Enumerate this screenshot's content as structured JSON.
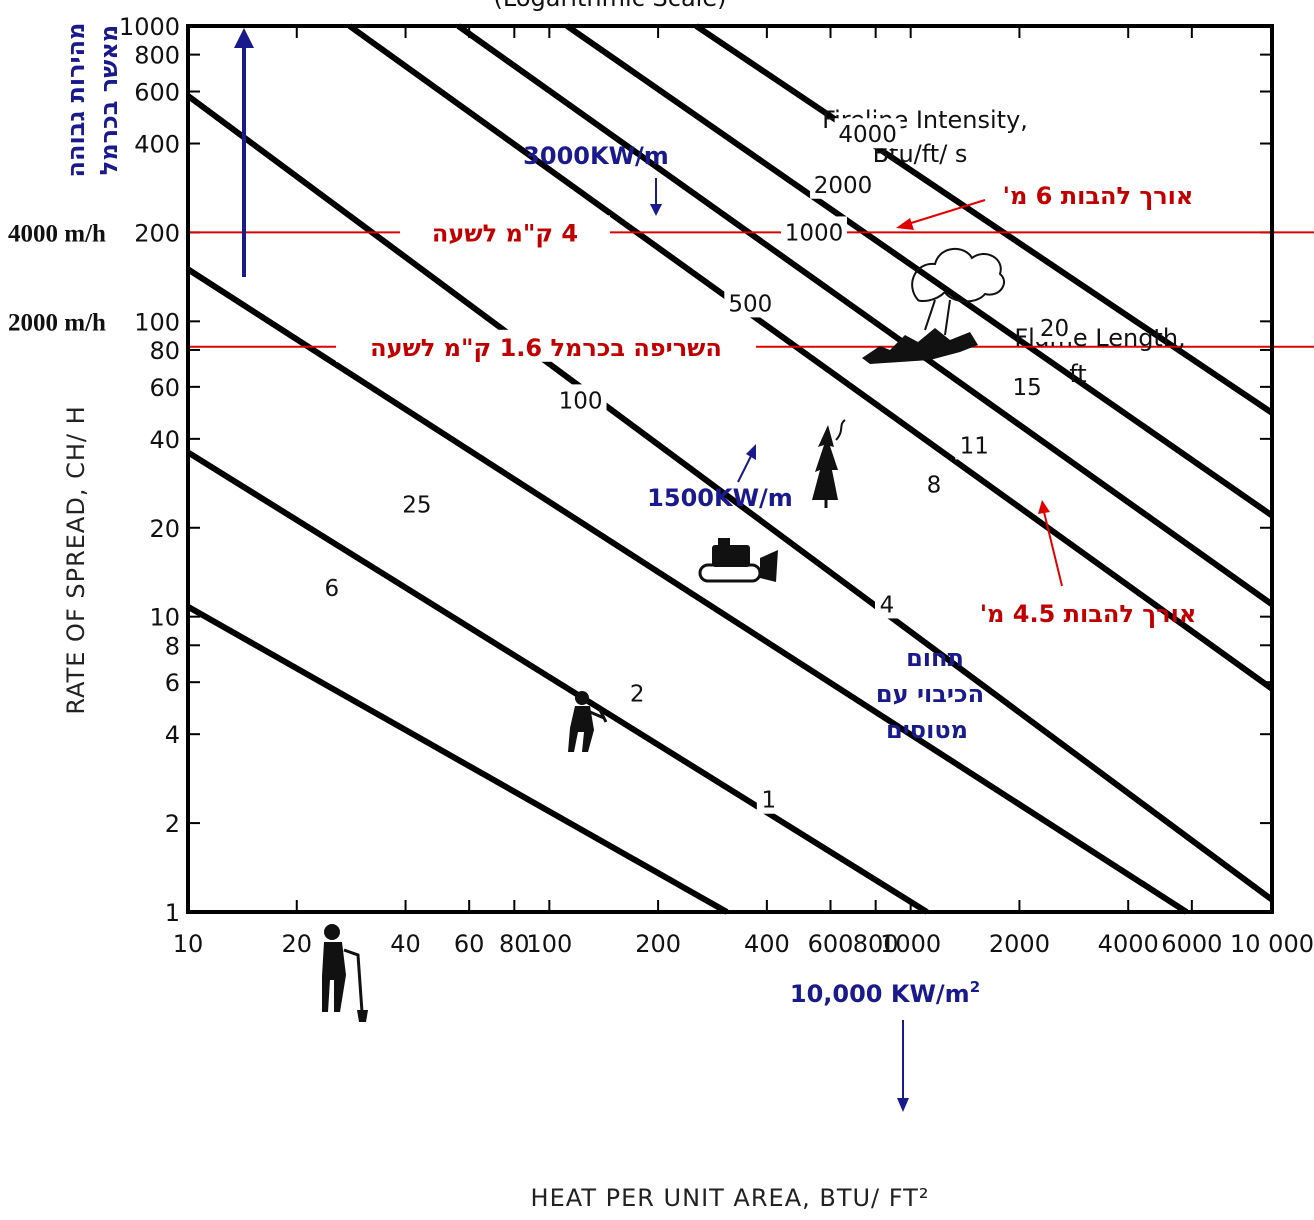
{
  "chart_data": {
    "type": "line",
    "title": "(Logarithmic Scale)",
    "xlabel": "HEAT PER UNIT AREA, BTU/ FT²",
    "ylabel": "RATE OF SPREAD, CH/ H",
    "x_scale": "log",
    "y_scale": "log",
    "xlim": [
      10,
      10000
    ],
    "ylim": [
      1,
      1000
    ],
    "x_ticks": [
      {
        "value": 10,
        "label": "10"
      },
      {
        "value": 20,
        "label": "20"
      },
      {
        "value": 40,
        "label": "40"
      },
      {
        "value": 60,
        "label": "60"
      },
      {
        "value": 80,
        "label": "80"
      },
      {
        "value": 100,
        "label": "100"
      },
      {
        "value": 200,
        "label": "200"
      },
      {
        "value": 400,
        "label": "400"
      },
      {
        "value": 600,
        "label": "600"
      },
      {
        "value": 800,
        "label": "800"
      },
      {
        "value": 1000,
        "label": "1000"
      },
      {
        "value": 2000,
        "label": "2000"
      },
      {
        "value": 4000,
        "label": "4000"
      },
      {
        "value": 6000,
        "label": "6000"
      },
      {
        "value": 10000,
        "label": "10 000"
      }
    ],
    "y_ticks": [
      {
        "value": 1,
        "label": "1"
      },
      {
        "value": 2,
        "label": "2"
      },
      {
        "value": 4,
        "label": "4"
      },
      {
        "value": 6,
        "label": "6"
      },
      {
        "value": 8,
        "label": "8"
      },
      {
        "value": 10,
        "label": "10"
      },
      {
        "value": 20,
        "label": "20"
      },
      {
        "value": 40,
        "label": "40"
      },
      {
        "value": 60,
        "label": "60"
      },
      {
        "value": 80,
        "label": "80"
      },
      {
        "value": 100,
        "label": "100"
      },
      {
        "value": 200,
        "label": "200"
      },
      {
        "value": 400,
        "label": "400"
      },
      {
        "value": 600,
        "label": "600"
      },
      {
        "value": 800,
        "label": "800"
      },
      {
        "value": 1000,
        "label": "1000"
      }
    ],
    "fireline_intensity_title": "Fireline Intensity,",
    "fireline_intensity_units": "Btu/ft/ s",
    "flame_length_title": "Flame Length,",
    "flame_length_units": "ft",
    "contours": [
      {
        "intensity_btu_ft_s": 1,
        "x": [
          10,
          310
        ],
        "y": [
          10.8,
          1
        ]
      },
      {
        "intensity_btu_ft_s": 6,
        "x": [
          10,
          1110
        ],
        "y": [
          36,
          1
        ]
      },
      {
        "intensity_btu_ft_s": 25,
        "x": [
          10,
          5800
        ],
        "y": [
          150,
          1
        ]
      },
      {
        "intensity_btu_ft_s": 100,
        "x": [
          10,
          10000
        ],
        "y": [
          580,
          1.1
        ]
      },
      {
        "intensity_btu_ft_s": 500,
        "x": [
          28,
          10000
        ],
        "y": [
          1000,
          5.7
        ]
      },
      {
        "intensity_btu_ft_s": 1000,
        "x": [
          56,
          10000
        ],
        "y": [
          1000,
          11
        ]
      },
      {
        "intensity_btu_ft_s": 2000,
        "x": [
          112,
          10000
        ],
        "y": [
          1000,
          22
        ]
      },
      {
        "intensity_btu_ft_s": 4000,
        "x": [
          255,
          10000
        ],
        "y": [
          1000,
          49
        ]
      }
    ],
    "contour_labels": [
      {
        "text": "1",
        "x": 405,
        "y": 2.4
      },
      {
        "text": "6",
        "x": 25,
        "y": 12.5
      },
      {
        "text": "25",
        "x": 43,
        "y": 24
      },
      {
        "text": "100",
        "x": 122,
        "y": 54
      },
      {
        "text": "500",
        "x": 360,
        "y": 115
      },
      {
        "text": "1000",
        "x": 540,
        "y": 200
      },
      {
        "text": "2000",
        "x": 650,
        "y": 290
      },
      {
        "text": "4000",
        "x": 760,
        "y": 430
      }
    ],
    "flame_length_labels": [
      {
        "text": "2",
        "x": 175,
        "y": 5.5
      },
      {
        "text": "4",
        "x": 860,
        "y": 11
      },
      {
        "text": "8",
        "x": 1160,
        "y": 28
      },
      {
        "text": "11",
        "x": 1500,
        "y": 38
      },
      {
        "text": "15",
        "x": 2100,
        "y": 60
      },
      {
        "text": "20",
        "x": 2500,
        "y": 95
      }
    ],
    "reference_lines": [
      {
        "y": 200,
        "left_label": "4000 m/h",
        "text": "4 ק\"מ לשעה"
      },
      {
        "y": 82,
        "left_label": "2000 m/h",
        "text": "השריפה בכרמל 1.6 ק\"מ לשעה"
      }
    ],
    "annotations": [
      {
        "text": "3000KW/m",
        "color": "#1a1a8c"
      },
      {
        "text": "1500KW/m",
        "color": "#1a1a8c"
      },
      {
        "text": "אורך להבות 6 מ'",
        "color": "#c00000"
      },
      {
        "text": "אורך להבות 4.5 מ'",
        "color": "#c00000"
      },
      {
        "text": "10,000 KW/m",
        "superscript": "2",
        "color": "#1a1a8c"
      },
      {
        "text": "מהירות גבוהה",
        "color": "#1a1a8c"
      },
      {
        "text": "מאשר בכרמל",
        "color": "#1a1a8c"
      },
      {
        "lines": [
          "תחום",
          "הכיבוי עם",
          "מטוסים"
        ],
        "color": "#1a1a8c"
      }
    ],
    "grid": false,
    "colors": {
      "contour": "#000000",
      "reference_line": "#dd0000",
      "annotation_red": "#c00000",
      "annotation_blue": "#1a1a8c"
    }
  }
}
